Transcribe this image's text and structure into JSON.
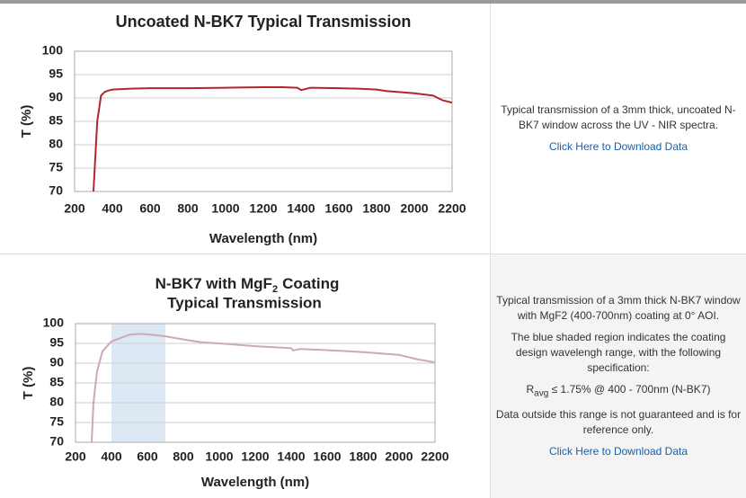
{
  "chart_data": [
    {
      "type": "line",
      "title": "Uncoated N-BK7 Typical Transmission",
      "xlabel": "Wavelength (nm)",
      "ylabel": "T (%)",
      "x": [
        300,
        320,
        340,
        360,
        380,
        400,
        500,
        600,
        800,
        1000,
        1200,
        1300,
        1380,
        1400,
        1450,
        1600,
        1700,
        1800,
        1850,
        2000,
        2100,
        2150,
        2200
      ],
      "values": [
        70,
        85,
        90.5,
        91.3,
        91.6,
        91.8,
        92,
        92.1,
        92.1,
        92.2,
        92.3,
        92.3,
        92.2,
        91.7,
        92.2,
        92.1,
        92,
        91.8,
        91.5,
        91,
        90.5,
        89.5,
        89
      ],
      "color": "#b5262b",
      "xlim": [
        200,
        2200
      ],
      "xticks": [
        200,
        400,
        600,
        800,
        1000,
        1200,
        1400,
        1600,
        1800,
        2000,
        2200
      ],
      "ylim": [
        70,
        100
      ],
      "yticks": [
        70,
        75,
        80,
        85,
        90,
        95,
        100
      ],
      "grid": true
    },
    {
      "type": "line",
      "title": "N-BK7 with MgF",
      "title_subscript": "2",
      "title_end": "Coating",
      "title_line2": "Typical Transmission",
      "xlabel": "Wavelength (nm)",
      "ylabel": "T (%)",
      "x": [
        290,
        300,
        320,
        350,
        400,
        500,
        550,
        600,
        700,
        800,
        900,
        1000,
        1200,
        1400,
        1410,
        1450,
        1600,
        1800,
        2000,
        2100,
        2200
      ],
      "values": [
        70,
        80,
        88,
        93,
        95.5,
        97.2,
        97.4,
        97.3,
        96.8,
        96,
        95.3,
        95,
        94.3,
        93.8,
        93.2,
        93.6,
        93.3,
        92.8,
        92.1,
        91,
        90.2
      ],
      "color": "#cbaab3",
      "shade": [
        400,
        700
      ],
      "shade_color": "#dce9f5",
      "xlim": [
        200,
        2200
      ],
      "xticks": [
        200,
        400,
        600,
        800,
        1000,
        1200,
        1400,
        1600,
        1800,
        2000,
        2200
      ],
      "ylim": [
        70,
        100
      ],
      "yticks": [
        70,
        75,
        80,
        85,
        90,
        95,
        100
      ],
      "grid": true
    }
  ],
  "panels": [
    {
      "text": "Typical transmission of a 3mm thick, uncoated N-BK7 window across the UV - NIR spectra.",
      "link": "Click Here to Download Data"
    },
    {
      "text": "Typical transmission of a 3mm thick N-BK7 window with MgF2 (400-700nm) coating at 0° AOI.",
      "text2": "The blue shaded region indicates the coating design wavelengh range, with the following specification:",
      "spec_symbol": "R",
      "spec_subscript": "avg",
      "spec_text": "≤ 1.75% @ 400 - 700nm (N-BK7)",
      "text3": "Data outside this range is not guaranteed and is for reference only.",
      "link": "Click Here to Download Data"
    }
  ]
}
